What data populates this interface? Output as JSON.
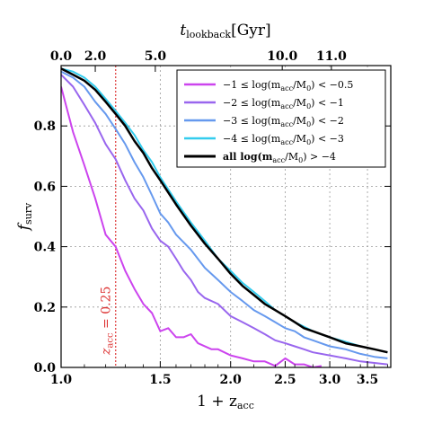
{
  "chart_data": {
    "type": "line",
    "xlabel": "1 + z",
    "xlabel_sub": "acc",
    "ylabel": "f",
    "ylabel_sub": "surv",
    "top_axis_label": "t",
    "top_axis_label_sub": "lookback",
    "top_axis_label_unit": "[Gyr]",
    "xscale": "log",
    "xlim": [
      1.0,
      3.85
    ],
    "ylim": [
      0.0,
      1.0
    ],
    "x_ticks": [
      1.0,
      1.5,
      2.0,
      2.5,
      3.0,
      3.5
    ],
    "x_tick_labels": [
      "1.0",
      "1.5",
      "2.0",
      "2.5",
      "3.0",
      "3.5"
    ],
    "y_ticks": [
      0.0,
      0.2,
      0.4,
      0.6,
      0.8
    ],
    "y_tick_labels": [
      "0.0",
      "0.2",
      "0.4",
      "0.6",
      "0.8"
    ],
    "top_ticks": [
      {
        "x": 1.0,
        "label": "0.0"
      },
      {
        "x": 1.15,
        "label": "2.0"
      },
      {
        "x": 1.47,
        "label": "5.0"
      },
      {
        "x": 2.47,
        "label": "10.0"
      },
      {
        "x": 3.02,
        "label": "11.0"
      }
    ],
    "vline": {
      "x": 1.25,
      "color": "#dd3333",
      "label": "z",
      "label_sub": "acc",
      "label_suffix": " = 0.25"
    },
    "legend_position": "top-right",
    "series": [
      {
        "name": "−1 ≤ log(m",
        "name_sub": "acc",
        "name_mid": "/M",
        "name_sub2": "0",
        "name_end": ") < −0.5",
        "color": "#cc44ee",
        "width": 2,
        "points": [
          [
            1.0,
            0.93
          ],
          [
            1.05,
            0.78
          ],
          [
            1.1,
            0.67
          ],
          [
            1.15,
            0.56
          ],
          [
            1.2,
            0.44
          ],
          [
            1.25,
            0.4
          ],
          [
            1.3,
            0.32
          ],
          [
            1.35,
            0.26
          ],
          [
            1.4,
            0.21
          ],
          [
            1.45,
            0.18
          ],
          [
            1.5,
            0.12
          ],
          [
            1.55,
            0.13
          ],
          [
            1.6,
            0.1
          ],
          [
            1.65,
            0.1
          ],
          [
            1.7,
            0.11
          ],
          [
            1.75,
            0.08
          ],
          [
            1.85,
            0.06
          ],
          [
            1.9,
            0.06
          ],
          [
            2.0,
            0.04
          ],
          [
            2.1,
            0.03
          ],
          [
            2.2,
            0.02
          ],
          [
            2.3,
            0.02
          ],
          [
            2.4,
            0.005
          ],
          [
            2.5,
            0.03
          ],
          [
            2.6,
            0.01
          ],
          [
            2.7,
            0.01
          ],
          [
            2.8,
            0.0
          ],
          [
            2.9,
            0.005
          ]
        ]
      },
      {
        "name": "−2 ≤ log(m",
        "name_sub": "acc",
        "name_mid": "/M",
        "name_sub2": "0",
        "name_end": ") < −1",
        "color": "#9966ee",
        "width": 2,
        "points": [
          [
            1.0,
            0.97
          ],
          [
            1.05,
            0.93
          ],
          [
            1.1,
            0.87
          ],
          [
            1.15,
            0.81
          ],
          [
            1.2,
            0.74
          ],
          [
            1.25,
            0.69
          ],
          [
            1.3,
            0.62
          ],
          [
            1.35,
            0.56
          ],
          [
            1.4,
            0.52
          ],
          [
            1.45,
            0.46
          ],
          [
            1.5,
            0.42
          ],
          [
            1.55,
            0.4
          ],
          [
            1.6,
            0.36
          ],
          [
            1.65,
            0.32
          ],
          [
            1.7,
            0.29
          ],
          [
            1.75,
            0.25
          ],
          [
            1.8,
            0.23
          ],
          [
            1.9,
            0.21
          ],
          [
            2.0,
            0.17
          ],
          [
            2.1,
            0.15
          ],
          [
            2.2,
            0.13
          ],
          [
            2.3,
            0.11
          ],
          [
            2.4,
            0.09
          ],
          [
            2.5,
            0.08
          ],
          [
            2.6,
            0.07
          ],
          [
            2.7,
            0.06
          ],
          [
            2.8,
            0.05
          ],
          [
            3.0,
            0.04
          ],
          [
            3.2,
            0.03
          ],
          [
            3.4,
            0.02
          ],
          [
            3.6,
            0.015
          ],
          [
            3.8,
            0.01
          ]
        ]
      },
      {
        "name": "−3 ≤ log(m",
        "name_sub": "acc",
        "name_mid": "/M",
        "name_sub2": "0",
        "name_end": ") < −2",
        "color": "#6699ee",
        "width": 2,
        "points": [
          [
            1.0,
            0.98
          ],
          [
            1.05,
            0.96
          ],
          [
            1.1,
            0.93
          ],
          [
            1.15,
            0.88
          ],
          [
            1.2,
            0.84
          ],
          [
            1.25,
            0.79
          ],
          [
            1.3,
            0.74
          ],
          [
            1.35,
            0.68
          ],
          [
            1.4,
            0.63
          ],
          [
            1.45,
            0.57
          ],
          [
            1.5,
            0.51
          ],
          [
            1.55,
            0.48
          ],
          [
            1.6,
            0.44
          ],
          [
            1.7,
            0.39
          ],
          [
            1.8,
            0.33
          ],
          [
            1.9,
            0.29
          ],
          [
            2.0,
            0.25
          ],
          [
            2.1,
            0.22
          ],
          [
            2.2,
            0.19
          ],
          [
            2.3,
            0.17
          ],
          [
            2.4,
            0.15
          ],
          [
            2.5,
            0.13
          ],
          [
            2.6,
            0.12
          ],
          [
            2.7,
            0.1
          ],
          [
            2.8,
            0.09
          ],
          [
            3.0,
            0.07
          ],
          [
            3.2,
            0.06
          ],
          [
            3.4,
            0.045
          ],
          [
            3.6,
            0.035
          ],
          [
            3.8,
            0.03
          ]
        ]
      },
      {
        "name": "−4 ≤ log(m",
        "name_sub": "acc",
        "name_mid": "/M",
        "name_sub2": "0",
        "name_end": ") < −3",
        "color": "#33ccee",
        "width": 2,
        "points": [
          [
            1.0,
            0.99
          ],
          [
            1.05,
            0.98
          ],
          [
            1.1,
            0.96
          ],
          [
            1.15,
            0.93
          ],
          [
            1.2,
            0.89
          ],
          [
            1.25,
            0.85
          ],
          [
            1.3,
            0.81
          ],
          [
            1.35,
            0.77
          ],
          [
            1.4,
            0.72
          ],
          [
            1.45,
            0.68
          ],
          [
            1.5,
            0.63
          ],
          [
            1.6,
            0.55
          ],
          [
            1.7,
            0.48
          ],
          [
            1.8,
            0.42
          ],
          [
            1.9,
            0.36
          ],
          [
            2.0,
            0.32
          ],
          [
            2.1,
            0.28
          ],
          [
            2.2,
            0.25
          ],
          [
            2.3,
            0.22
          ],
          [
            2.4,
            0.19
          ],
          [
            2.5,
            0.17
          ],
          [
            2.6,
            0.15
          ],
          [
            2.7,
            0.135
          ],
          [
            2.8,
            0.12
          ],
          [
            3.0,
            0.1
          ],
          [
            3.2,
            0.085
          ],
          [
            3.4,
            0.07
          ],
          [
            3.6,
            0.06
          ],
          [
            3.8,
            0.05
          ]
        ]
      },
      {
        "name": "all log(m",
        "name_sub": "acc",
        "name_mid": "/M",
        "name_sub2": "0",
        "name_end": ") > −4",
        "color": "#000000",
        "width": 2.5,
        "points": [
          [
            1.0,
            0.99
          ],
          [
            1.05,
            0.97
          ],
          [
            1.1,
            0.95
          ],
          [
            1.15,
            0.92
          ],
          [
            1.2,
            0.88
          ],
          [
            1.25,
            0.84
          ],
          [
            1.3,
            0.8
          ],
          [
            1.35,
            0.75
          ],
          [
            1.4,
            0.71
          ],
          [
            1.45,
            0.66
          ],
          [
            1.5,
            0.62
          ],
          [
            1.6,
            0.54
          ],
          [
            1.7,
            0.47
          ],
          [
            1.8,
            0.41
          ],
          [
            1.9,
            0.36
          ],
          [
            2.0,
            0.31
          ],
          [
            2.1,
            0.27
          ],
          [
            2.2,
            0.24
          ],
          [
            2.3,
            0.21
          ],
          [
            2.4,
            0.19
          ],
          [
            2.5,
            0.17
          ],
          [
            2.6,
            0.15
          ],
          [
            2.7,
            0.13
          ],
          [
            2.8,
            0.12
          ],
          [
            3.0,
            0.1
          ],
          [
            3.2,
            0.08
          ],
          [
            3.4,
            0.07
          ],
          [
            3.6,
            0.06
          ],
          [
            3.8,
            0.05
          ]
        ]
      }
    ]
  }
}
